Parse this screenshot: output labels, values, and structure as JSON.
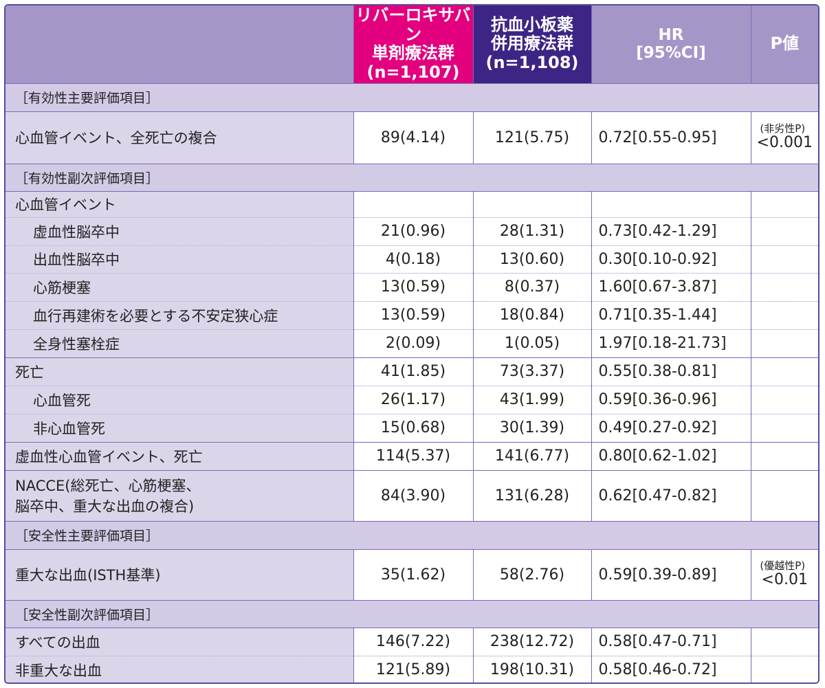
{
  "header": {
    "rivaroxaban": {
      "line1": "リバーロキサバン",
      "line2": "単剤療法群",
      "line3": "(n=1,107)"
    },
    "antiplatelet": {
      "line1": "抗血小板薬",
      "line2": "併用療法群",
      "line3": "(n=1,108)"
    },
    "hr": {
      "line1": "HR",
      "line2": "[95%CI]"
    },
    "p": "P値"
  },
  "sections": {
    "eff_primary": "［有効性主要評価項目］",
    "eff_secondary": "［有効性副次評価項目］",
    "safe_primary": "［安全性主要評価項目］",
    "safe_secondary": "［安全性副次評価項目］"
  },
  "rows": {
    "r1": {
      "label": "心血管イベント、全死亡の複合",
      "riva": "89(4.14)",
      "anti": "121(5.75)",
      "hr": "0.72[0.55-0.95]",
      "p_note": "(非劣性P)",
      "p": "<0.001"
    },
    "r2": {
      "label": "心血管イベント"
    },
    "r3": {
      "label": "虚血性脳卒中",
      "riva": "21(0.96)",
      "anti": "28(1.31)",
      "hr": "0.73[0.42-1.29]"
    },
    "r4": {
      "label": "出血性脳卒中",
      "riva": "4(0.18)",
      "anti": "13(0.60)",
      "hr": "0.30[0.10-0.92]"
    },
    "r5": {
      "label": "心筋梗塞",
      "riva": "13(0.59)",
      "anti": "8(0.37)",
      "hr": "1.60[0.67-3.87]"
    },
    "r6": {
      "label": "血行再建術を必要とする不安定狭心症",
      "riva": "13(0.59)",
      "anti": "18(0.84)",
      "hr": "0.71[0.35-1.44]"
    },
    "r7": {
      "label": "全身性塞栓症",
      "riva": "2(0.09)",
      "anti": "1(0.05)",
      "hr": "1.97[0.18-21.73]"
    },
    "r8": {
      "label": "死亡",
      "riva": "41(1.85)",
      "anti": "73(3.37)",
      "hr": "0.55[0.38-0.81]"
    },
    "r9": {
      "label": "心血管死",
      "riva": "26(1.17)",
      "anti": "43(1.99)",
      "hr": "0.59[0.36-0.96]"
    },
    "r10": {
      "label": "非心血管死",
      "riva": "15(0.68)",
      "anti": "30(1.39)",
      "hr": "0.49[0.27-0.92]"
    },
    "r11": {
      "label": "虚血性心血管イベント、死亡",
      "riva": "114(5.37)",
      "anti": "141(6.77)",
      "hr": "0.80[0.62-1.02]"
    },
    "r12": {
      "label1": "NACCE(総死亡、心筋梗塞、",
      "label2": "脳卒中、重大な出血の複合)",
      "riva": "84(3.90)",
      "anti": "131(6.28)",
      "hr": "0.62[0.47-0.82]"
    },
    "r13": {
      "label": "重大な出血(ISTH基準)",
      "riva": "35(1.62)",
      "anti": "58(2.76)",
      "hr": "0.59[0.39-0.89]",
      "p_note": "(優越性P)",
      "p": "<0.01"
    },
    "r14": {
      "label": "すべての出血",
      "riva": "146(7.22)",
      "anti": "238(12.72)",
      "hr": "0.58[0.47-0.71]"
    },
    "r15": {
      "label": "非重大な出血",
      "riva": "121(5.89)",
      "anti": "198(10.31)",
      "hr": "0.58[0.46-0.72]"
    }
  }
}
